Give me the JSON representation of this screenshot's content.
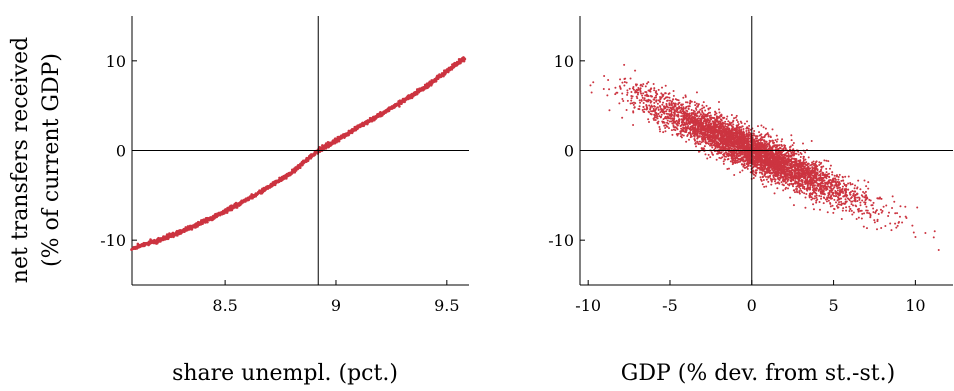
{
  "chart_data": [
    {
      "type": "scatter",
      "xlabel": "share unempl. (pct.)",
      "ylabel": [
        "net transfers received",
        "(% of current GDP)"
      ],
      "xlim": [
        8.08,
        9.6
      ],
      "ylim": [
        -15,
        15
      ],
      "xticks": [
        "8.5",
        "9",
        "9.5"
      ],
      "xtick_values": [
        8.5,
        9,
        9.5
      ],
      "yticks": [
        "10",
        "0",
        "-10"
      ],
      "ytick_values": [
        10,
        0,
        -10
      ],
      "reference_lines": {
        "x": 8.92,
        "y": 0
      },
      "grid": false,
      "series": [
        {
          "relationship": "tight, slightly convex increasing curve",
          "x": [
            8.08,
            8.2,
            8.3,
            8.4,
            8.5,
            8.6,
            8.7,
            8.8,
            8.92,
            9.0,
            9.1,
            9.2,
            9.3,
            9.4,
            9.5,
            9.58
          ],
          "y": [
            -10.9,
            -10.0,
            -9.1,
            -7.95,
            -6.8,
            -5.45,
            -4.05,
            -2.45,
            0.0,
            1.1,
            2.6,
            4.0,
            5.5,
            7.0,
            8.85,
            10.3
          ],
          "color": "#cc3440"
        }
      ]
    },
    {
      "type": "scatter",
      "xlabel": "GDP (% dev. from st.-st.)",
      "xlim": [
        -10.5,
        12.3
      ],
      "ylim": [
        -15,
        15
      ],
      "xticks": [
        "-10",
        "-5",
        "0",
        "5",
        "10"
      ],
      "xtick_values": [
        -10,
        -5,
        0,
        5,
        10
      ],
      "yticks": [
        "10",
        "0",
        "-10"
      ],
      "ytick_values": [
        10,
        0,
        -10
      ],
      "reference_lines": {
        "x": 0,
        "y": 0
      },
      "grid": false,
      "series": [
        {
          "relationship": "dense negative linear cloud",
          "x_range": [
            -10,
            12
          ],
          "slope": -0.85,
          "intercept": 0,
          "spread_sd": 1.1,
          "n_points": 5000,
          "color": "#cc3440"
        }
      ]
    }
  ]
}
